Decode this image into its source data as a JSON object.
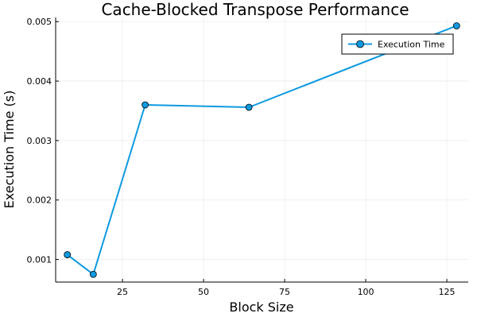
{
  "chart_data": {
    "type": "line",
    "title": "Cache-Blocked Transpose Performance",
    "xlabel": "Block Size",
    "ylabel": "Execution Time (s)",
    "xlim": [
      4.4,
      131.6
    ],
    "ylim": [
      0.00062,
      0.00507
    ],
    "x_ticks": [
      25,
      50,
      75,
      100,
      125
    ],
    "y_ticks": [
      0.001,
      0.002,
      0.003,
      0.004,
      0.005
    ],
    "y_tick_labels": [
      "0.001",
      "0.002",
      "0.003",
      "0.004",
      "0.005"
    ],
    "grid": true,
    "legend_position": "top-right",
    "series": [
      {
        "name": "Execution Time",
        "color": "#0f9ae0",
        "marker": "circle",
        "x": [
          8,
          16,
          32,
          64,
          128
        ],
        "y": [
          0.00108,
          0.00075,
          0.0036,
          0.00356,
          0.00493
        ]
      }
    ]
  }
}
